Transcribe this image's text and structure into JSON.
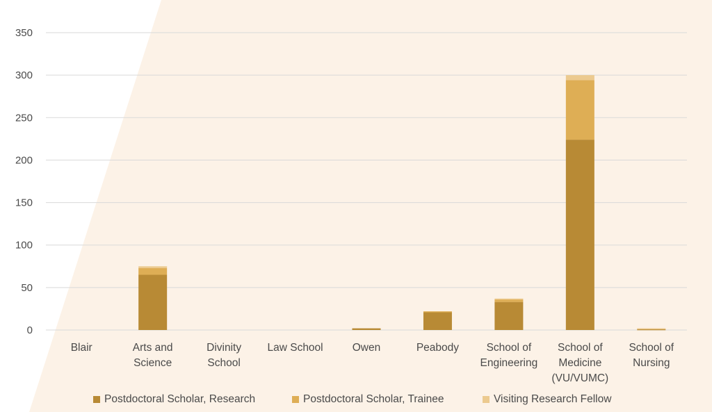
{
  "colors": {
    "background_band": "#fcf2e7",
    "grid": "#d9d9d9",
    "axis_text": "#4a4a4a"
  },
  "chart_data": {
    "type": "bar",
    "stacked": true,
    "title": "",
    "xlabel": "",
    "ylabel": "",
    "ylim": [
      0,
      350
    ],
    "yticks": [
      0,
      50,
      100,
      150,
      200,
      250,
      300,
      350
    ],
    "categories": [
      [
        "Blair"
      ],
      [
        "Arts and",
        "Science"
      ],
      [
        "Divinity",
        "School"
      ],
      [
        "Law School"
      ],
      [
        "Owen"
      ],
      [
        "Peabody"
      ],
      [
        "School of",
        "Engineering"
      ],
      [
        "School of",
        "Medicine",
        "(VU/VUMC)"
      ],
      [
        "School of",
        "Nursing"
      ]
    ],
    "series": [
      {
        "name": "Postdoctoral Scholar, Research",
        "color": "#b88a35",
        "values": [
          0,
          65,
          0,
          0,
          2,
          21,
          33,
          224,
          1
        ]
      },
      {
        "name": "Postdoctoral Scholar, Trainee",
        "color": "#deae55",
        "values": [
          0,
          8,
          0,
          0,
          0,
          1,
          3,
          70,
          0
        ]
      },
      {
        "name": "Visiting Research Fellow",
        "color": "#ecca8f",
        "values": [
          0,
          2,
          0,
          0,
          0,
          0,
          1,
          6,
          1
        ]
      }
    ],
    "legend_position": "bottom"
  }
}
